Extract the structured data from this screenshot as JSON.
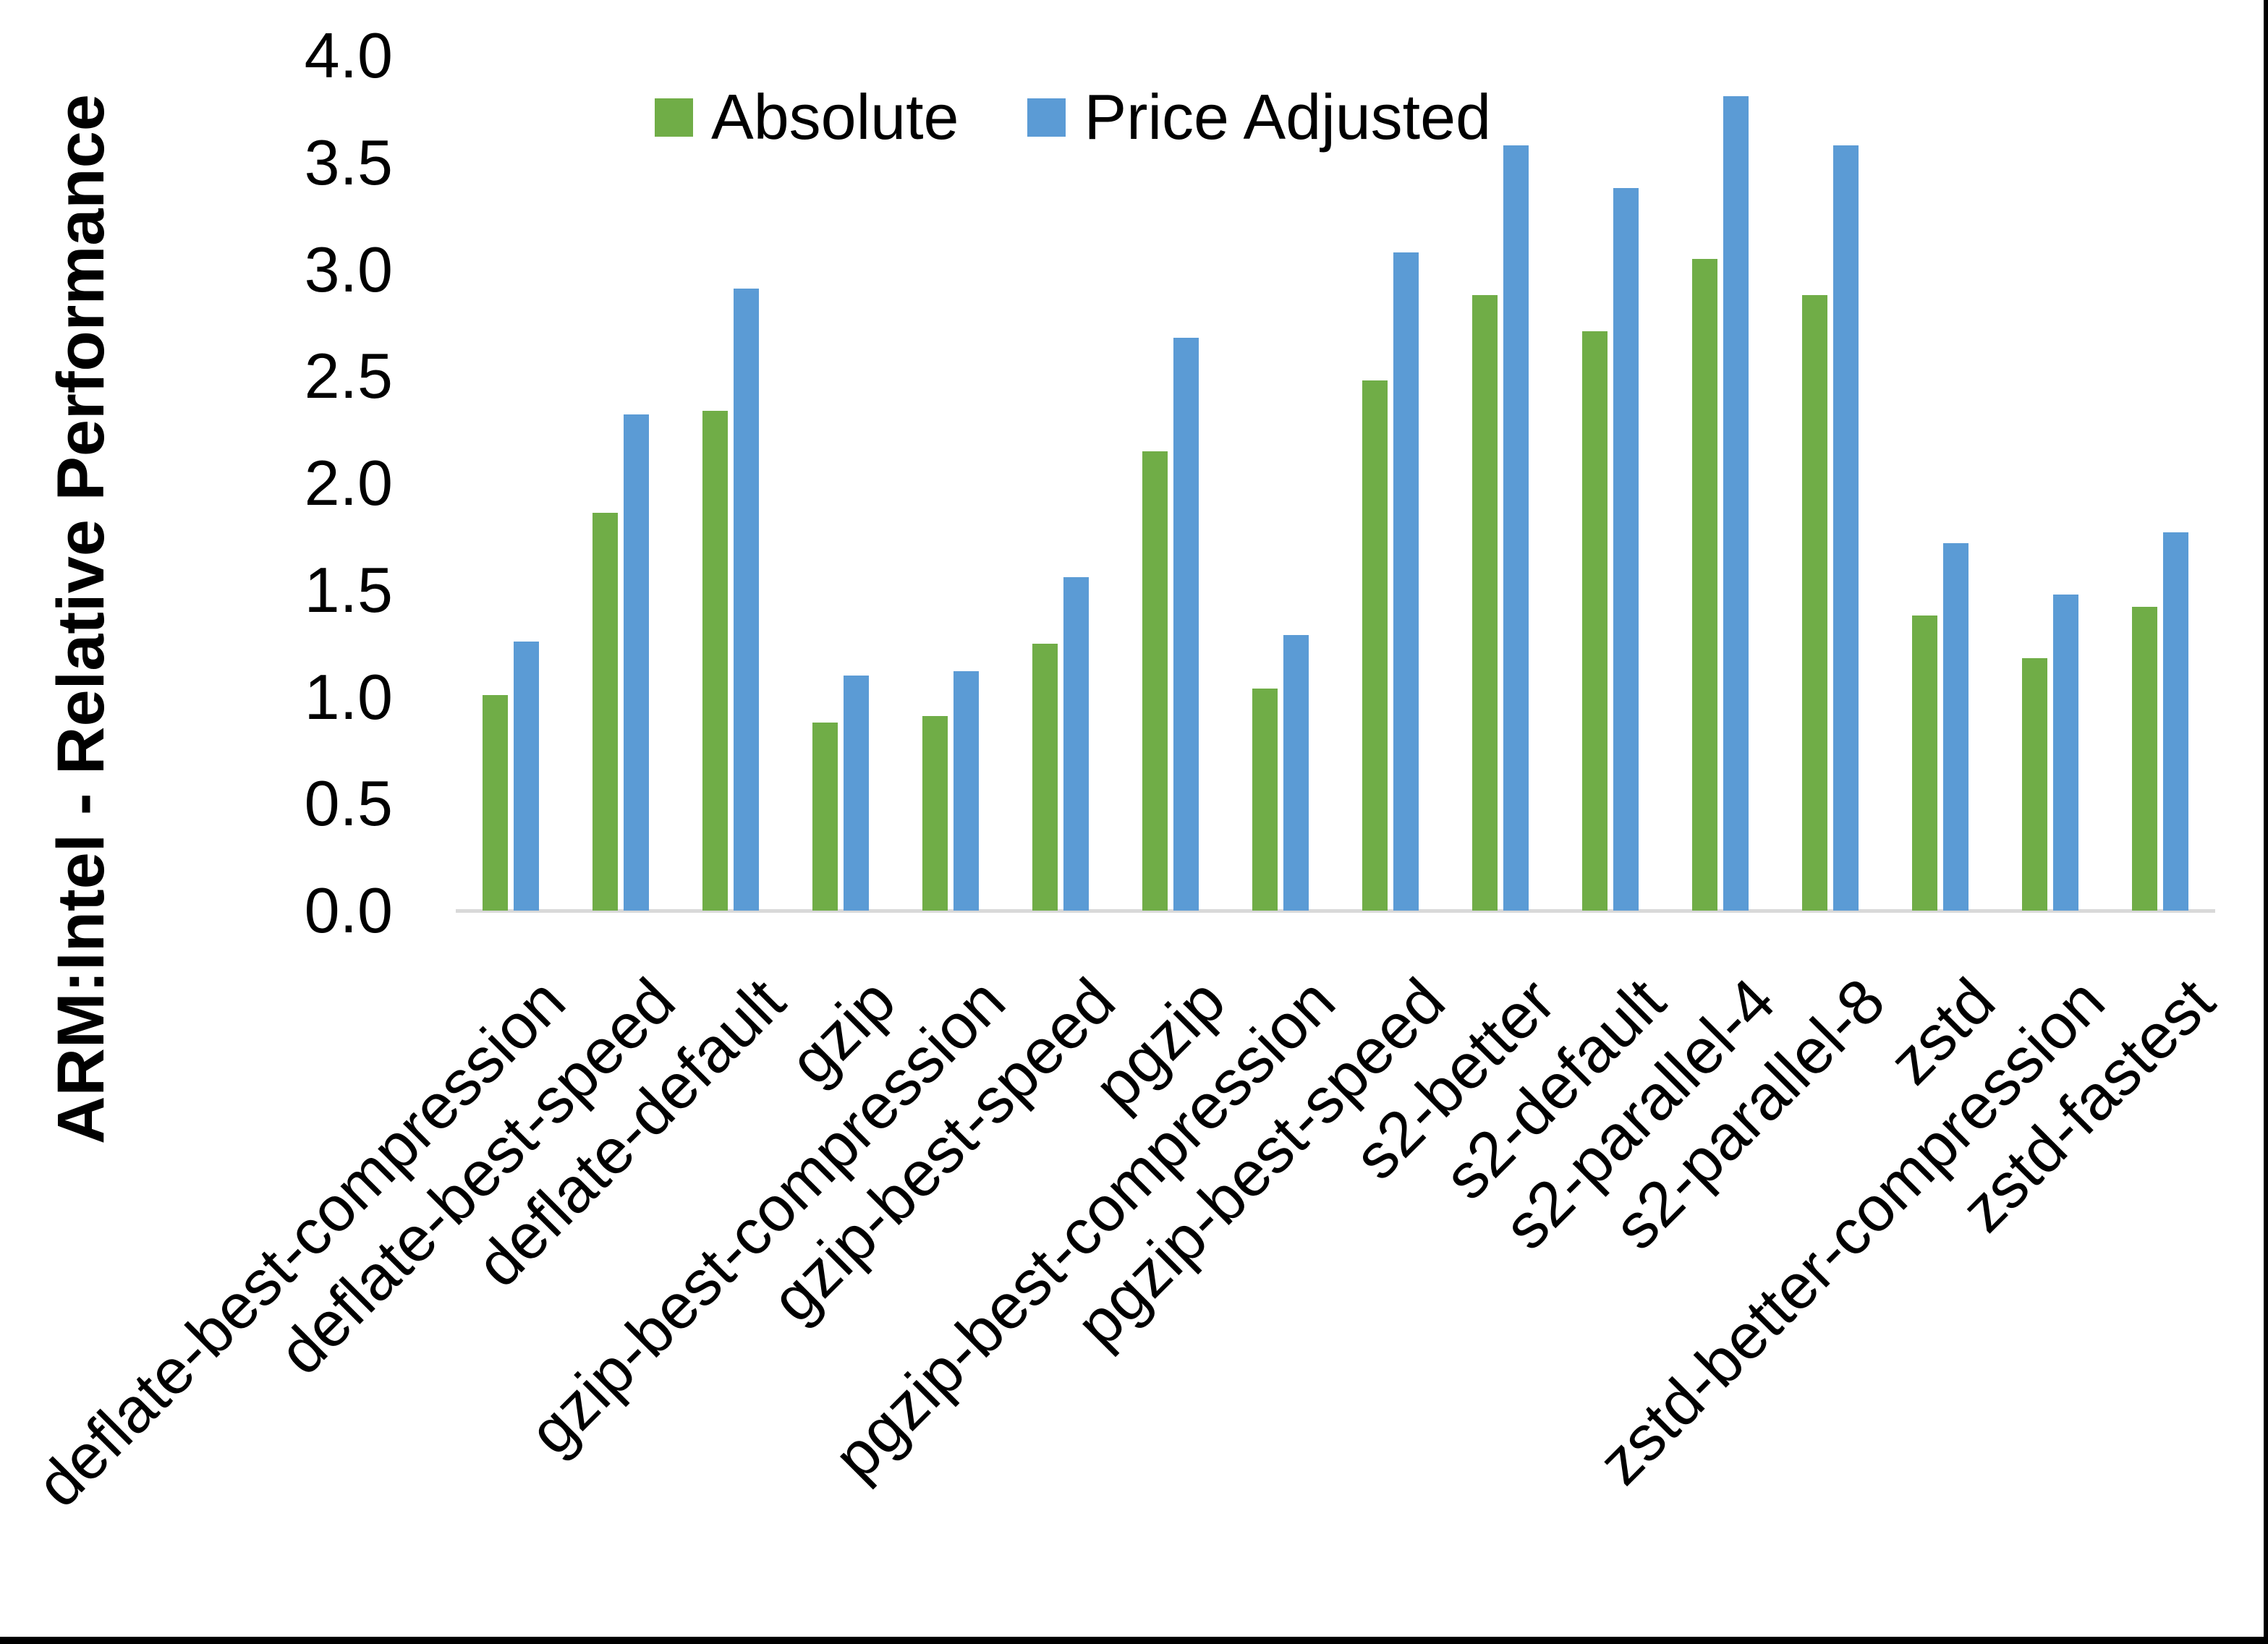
{
  "y_axis": {
    "title": "ARM:Intel - Relative Performance",
    "tick_labels": [
      "4.0",
      "3.5",
      "3.0",
      "2.5",
      "2.0",
      "1.5",
      "1.0",
      "0.5",
      "0.0"
    ]
  },
  "legend": {
    "items": [
      {
        "label": "Absolute",
        "color": "#70AD47"
      },
      {
        "label": "Price Adjusted",
        "color": "#5B9BD5"
      }
    ]
  },
  "colors": {
    "absolute_green": "#70AD47",
    "price_adjusted_blue": "#5B9BD5",
    "axis_line": "#D9D9D9",
    "frame": "#000000"
  },
  "chart_data": {
    "type": "bar",
    "title": "",
    "xlabel": "",
    "ylabel": "ARM:Intel - Relative Performance",
    "ylim": [
      0,
      4
    ],
    "ytick_step": 0.5,
    "grid": false,
    "legend_position": "top-center",
    "categories": [
      "deflate-best-compression",
      "deflate-best-speed",
      "deflate-default",
      "gzip",
      "gzip-best-compression",
      "gzip-best-speed",
      "pgzip",
      "pgzip-best-compression",
      "pgzip-best-speed",
      "s2-better",
      "s2-default",
      "s2-parallel-4",
      "s2-parallel-8",
      "zstd",
      "zstd-better-compression",
      "zstd-fastest"
    ],
    "series": [
      {
        "name": "Absolute",
        "color": "#70AD47",
        "values": [
          1.01,
          1.86,
          2.34,
          0.88,
          0.91,
          1.25,
          2.15,
          1.04,
          2.48,
          2.88,
          2.71,
          3.05,
          2.88,
          1.38,
          1.18,
          1.42
        ]
      },
      {
        "name": "Price Adjusted",
        "color": "#5B9BD5",
        "values": [
          1.26,
          2.32,
          2.91,
          1.1,
          1.12,
          1.56,
          2.68,
          1.29,
          3.08,
          3.58,
          3.38,
          3.81,
          3.58,
          1.72,
          1.48,
          1.77
        ]
      }
    ]
  }
}
